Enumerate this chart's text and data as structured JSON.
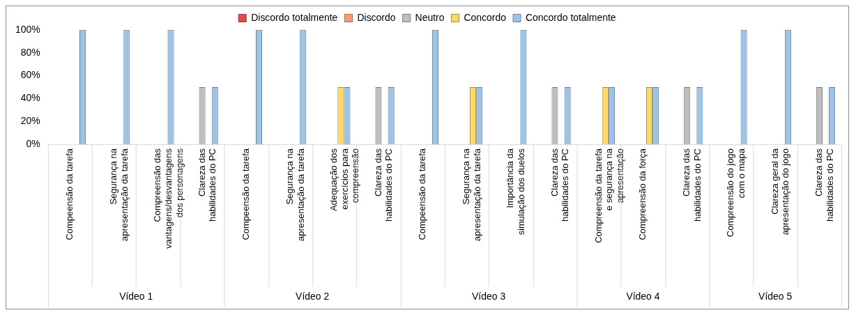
{
  "chart_data": {
    "type": "bar",
    "categories": [
      "Compeensão da tarefa",
      "Segurança na apresentação da tarefa",
      "Compreensão das vantagens/desvantagens dos personagens",
      "Clareza das habilidades do PC",
      "Compeensão da tarefa",
      "Segurança na apresentação da tarefa",
      "Adequação dos exercícios para compreensão",
      "Clareza das habilidades do PC",
      "Compeensão da tarefa",
      "Segurança na apresentação da tarefa",
      "Importância da simulação dos duelos",
      "Clareza das habilidades do PC",
      "Compreensão da tarefa e segurança na apresentação",
      "Compreensão da força",
      "Clareza das habilidades do PC",
      "Compreensão do jogo com o mapa",
      "Clareza geral da apresentação do jogo",
      "Clareza das habilidades do PC"
    ],
    "series": [
      {
        "name": "Discordo totalmente",
        "color": "#e04b4b",
        "values": [
          0,
          0,
          0,
          0,
          0,
          0,
          0,
          0,
          0,
          0,
          0,
          0,
          0,
          0,
          0,
          0,
          0,
          0
        ]
      },
      {
        "name": "Discordo",
        "color": "#f4a070",
        "values": [
          0,
          0,
          0,
          0,
          0,
          0,
          0,
          0,
          0,
          0,
          0,
          0,
          0,
          0,
          0,
          0,
          0,
          0
        ]
      },
      {
        "name": "Neutro",
        "color": "#bfbfbf",
        "values": [
          0,
          0,
          0,
          50,
          0,
          0,
          0,
          50,
          0,
          0,
          0,
          50,
          0,
          0,
          50,
          0,
          0,
          50
        ]
      },
      {
        "name": "Concordo",
        "color": "#ffd966",
        "values": [
          0,
          0,
          0,
          0,
          0,
          0,
          50,
          0,
          0,
          50,
          0,
          0,
          50,
          50,
          0,
          0,
          0,
          0
        ]
      },
      {
        "name": "Concordo totalmente",
        "color": "#9dc3e6",
        "values": [
          100,
          100,
          100,
          50,
          100,
          100,
          50,
          50,
          100,
          50,
          100,
          50,
          50,
          50,
          50,
          100,
          100,
          50
        ]
      }
    ],
    "ylim": [
      0,
      100
    ],
    "yticks": [
      {
        "value": 0,
        "label": "0%"
      },
      {
        "value": 20,
        "label": "20%"
      },
      {
        "value": 40,
        "label": "40%"
      },
      {
        "value": 60,
        "label": "60%"
      },
      {
        "value": 80,
        "label": "80%"
      },
      {
        "value": 100,
        "label": "100%"
      }
    ],
    "grid": false,
    "legend": "top",
    "annotations": [
      "Vídeo 1",
      "Vídeo 2",
      "Vídeo 3",
      "Vídeo 4",
      "Vídeo 5"
    ]
  }
}
